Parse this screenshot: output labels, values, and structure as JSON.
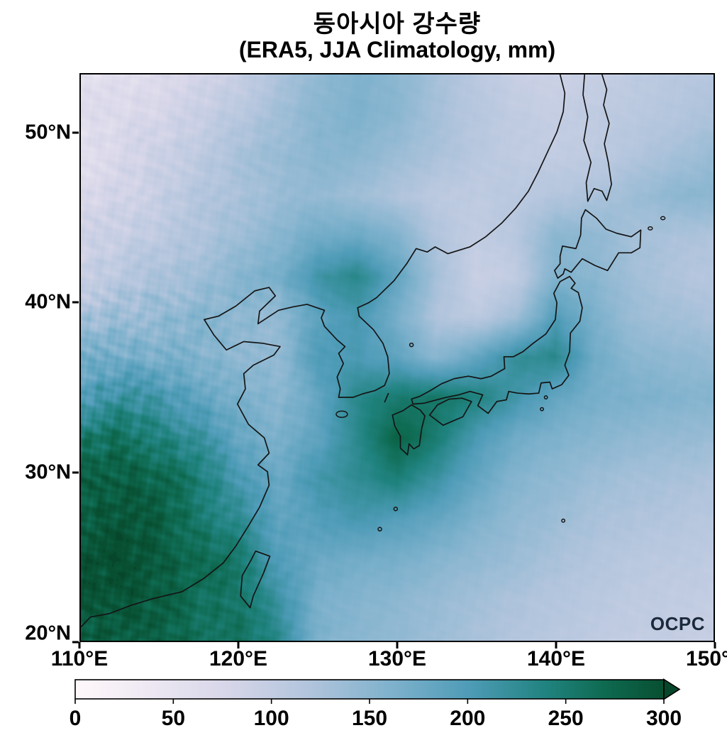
{
  "figure": {
    "title": "동아시아 강수량",
    "subtitle": "(ERA5, JJA Climatology, mm)",
    "logo": "OCPC"
  },
  "axes": {
    "lat_ticks": [
      {
        "label": "50°N",
        "value": 50
      },
      {
        "label": "40°N",
        "value": 40
      },
      {
        "label": "30°N",
        "value": 30
      },
      {
        "label": "20°N",
        "value": 20
      }
    ],
    "lon_ticks": [
      {
        "label": "110°E",
        "value": 110
      },
      {
        "label": "120°E",
        "value": 120
      },
      {
        "label": "130°E",
        "value": 130
      },
      {
        "label": "140°E",
        "value": 140
      },
      {
        "label": "150°E",
        "value": 150
      }
    ]
  },
  "colorbar": {
    "min": 0,
    "max": 300,
    "extend_max_arrow": true,
    "ticks": [
      {
        "label": "0",
        "value": 0
      },
      {
        "label": "50",
        "value": 50
      },
      {
        "label": "100",
        "value": 100
      },
      {
        "label": "150",
        "value": 150
      },
      {
        "label": "200",
        "value": 200
      },
      {
        "label": "250",
        "value": 250
      },
      {
        "label": "300",
        "value": 300
      }
    ]
  },
  "chart_data": {
    "type": "heatmap",
    "title": "동아시아 강수량",
    "subtitle": "(ERA5, JJA Climatology, mm)",
    "dataset": "ERA5",
    "season": "JJA",
    "units": "mm",
    "lon_range": [
      110,
      150
    ],
    "lat_range": [
      20,
      53.5
    ],
    "grid_lons": [
      110,
      112.5,
      115,
      117.5,
      120,
      122.5,
      125,
      127.5,
      130,
      132.5,
      135,
      137.5,
      140,
      142.5,
      145,
      147.5,
      150
    ],
    "grid_lats": [
      53.5,
      51.11,
      48.71,
      46.32,
      43.93,
      41.54,
      39.14,
      36.75,
      34.36,
      31.96,
      29.57,
      27.18,
      24.79,
      22.39,
      20.0
    ],
    "values_mm": [
      [
        55,
        60,
        68,
        80,
        95,
        120,
        145,
        160,
        150,
        130,
        110,
        95,
        90,
        95,
        105,
        110,
        115
      ],
      [
        60,
        68,
        78,
        92,
        112,
        132,
        152,
        162,
        150,
        128,
        112,
        102,
        98,
        104,
        110,
        116,
        122
      ],
      [
        62,
        75,
        88,
        108,
        124,
        140,
        152,
        150,
        138,
        124,
        112,
        103,
        100,
        106,
        116,
        128,
        140
      ],
      [
        70,
        84,
        98,
        114,
        126,
        136,
        144,
        134,
        120,
        108,
        104,
        110,
        116,
        122,
        136,
        148,
        152
      ],
      [
        82,
        94,
        106,
        118,
        136,
        152,
        172,
        176,
        158,
        118,
        100,
        112,
        152,
        146,
        130,
        124,
        120
      ],
      [
        98,
        110,
        122,
        136,
        152,
        168,
        212,
        232,
        186,
        128,
        94,
        102,
        158,
        152,
        130,
        120,
        114
      ],
      [
        124,
        136,
        146,
        152,
        150,
        142,
        188,
        208,
        166,
        120,
        106,
        132,
        198,
        162,
        136,
        130,
        124
      ],
      [
        162,
        172,
        162,
        156,
        150,
        142,
        202,
        202,
        186,
        152,
        182,
        222,
        232,
        172,
        152,
        146,
        142
      ],
      [
        202,
        222,
        206,
        190,
        162,
        152,
        182,
        232,
        252,
        256,
        242,
        212,
        182,
        168,
        162,
        158,
        156
      ],
      [
        252,
        262,
        246,
        216,
        182,
        162,
        186,
        232,
        278,
        250,
        202,
        172,
        162,
        152,
        146,
        142,
        138
      ],
      [
        276,
        286,
        272,
        246,
        206,
        176,
        212,
        226,
        246,
        216,
        182,
        156,
        146,
        136,
        130,
        126,
        122
      ],
      [
        286,
        296,
        282,
        256,
        226,
        186,
        196,
        206,
        196,
        182,
        162,
        146,
        136,
        126,
        120,
        116,
        112
      ],
      [
        296,
        302,
        292,
        266,
        256,
        196,
        176,
        172,
        166,
        156,
        146,
        136,
        126,
        116,
        110,
        108,
        104
      ],
      [
        292,
        297,
        282,
        262,
        256,
        216,
        166,
        156,
        150,
        140,
        130,
        122,
        115,
        110,
        105,
        102,
        100
      ],
      [
        282,
        287,
        277,
        266,
        262,
        232,
        162,
        150,
        145,
        135,
        125,
        118,
        110,
        105,
        100,
        98,
        95
      ]
    ],
    "colormap_stops": [
      {
        "value": 0,
        "color": "#fff8fb"
      },
      {
        "value": 40,
        "color": "#ece7f2"
      },
      {
        "value": 80,
        "color": "#d5d5e8"
      },
      {
        "value": 120,
        "color": "#b0c4dc"
      },
      {
        "value": 160,
        "color": "#80b2cd"
      },
      {
        "value": 200,
        "color": "#4f9cb8"
      },
      {
        "value": 240,
        "color": "#20837f"
      },
      {
        "value": 270,
        "color": "#0e6a50"
      },
      {
        "value": 300,
        "color": "#084f32"
      }
    ],
    "over_color": "#06462b",
    "colorbar_ticks": [
      0,
      50,
      100,
      150,
      200,
      250,
      300
    ]
  }
}
